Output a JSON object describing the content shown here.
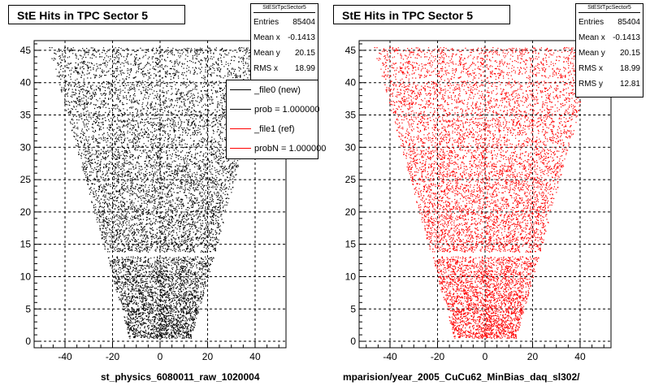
{
  "footer_text": "",
  "legend": {
    "entries": [
      {
        "label": "_file0 (new)",
        "color": "#000000"
      },
      {
        "label": "prob = 1.000000",
        "color": "#000000"
      },
      {
        "label": "_file1 (ref)",
        "color": "#ff0000"
      },
      {
        "label": "probN = 1.000000",
        "color": "#ff0000"
      }
    ]
  },
  "chart_data": [
    {
      "type": "scatter",
      "title": "StE Hits in TPC Sector 5",
      "xlabel": "st_physics_6080011_raw_1020004",
      "ylabel": "",
      "xlim": [
        -53,
        53
      ],
      "ylim": [
        -1,
        46.5
      ],
      "xticks": [
        -40,
        -20,
        0,
        20,
        40
      ],
      "yticks": [
        0,
        5,
        10,
        15,
        20,
        25,
        30,
        35,
        40,
        45
      ],
      "grid": true,
      "marker_color": "#000000",
      "shape": {
        "y_range": [
          0.5,
          45.5
        ],
        "bottom_halfwidth": 13,
        "top_halfwidth": 47,
        "gap_y": 13.5
      },
      "stats": {
        "title": "StEStTpcSector5",
        "rows": [
          {
            "label": "Entries",
            "value": "85404"
          },
          {
            "label": "Mean x",
            "value": "-0.1413"
          },
          {
            "label": "Mean y",
            "value": "20.15"
          },
          {
            "label": "RMS x",
            "value": "18.99"
          }
        ]
      }
    },
    {
      "type": "scatter",
      "title": "StE Hits in TPC Sector 5",
      "xlabel": "mparision/year_2005_CuCu62_MinBias_daq_sl302/",
      "ylabel": "",
      "xlim": [
        -53,
        53
      ],
      "ylim": [
        -1,
        46.5
      ],
      "xticks": [
        -40,
        -20,
        0,
        20,
        40
      ],
      "yticks": [
        0,
        5,
        10,
        15,
        20,
        25,
        30,
        35,
        40,
        45
      ],
      "grid": true,
      "marker_color": "#ff0000",
      "shape": {
        "y_range": [
          0.5,
          45.5
        ],
        "bottom_halfwidth": 13,
        "top_halfwidth": 47,
        "gap_y": 13.5
      },
      "stats": {
        "title": "StEStTpcSector5",
        "rows": [
          {
            "label": "Entries",
            "value": "85404"
          },
          {
            "label": "Mean x",
            "value": "-0.1413"
          },
          {
            "label": "Mean y",
            "value": "20.15"
          },
          {
            "label": "RMS x",
            "value": "18.99"
          },
          {
            "label": "RMS y",
            "value": "12.81"
          }
        ]
      }
    }
  ]
}
